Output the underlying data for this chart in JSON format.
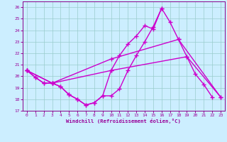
{
  "xlabel": "Windchill (Refroidissement éolien,°C)",
  "xlim": [
    -0.5,
    23.5
  ],
  "ylim": [
    17,
    26.5
  ],
  "yticks": [
    17,
    18,
    19,
    20,
    21,
    22,
    23,
    24,
    25,
    26
  ],
  "xticks": [
    0,
    1,
    2,
    3,
    4,
    5,
    6,
    7,
    8,
    9,
    10,
    11,
    12,
    13,
    14,
    15,
    16,
    17,
    18,
    19,
    20,
    21,
    22,
    23
  ],
  "bg_color": "#cceeff",
  "grid_color": "#99cccc",
  "line_color": "#cc00cc",
  "line_width": 1.0,
  "marker": "+",
  "marker_size": 4,
  "marker_ew": 1.0,
  "line1_x": [
    0,
    1,
    2,
    3,
    4,
    5,
    6,
    7,
    8,
    9,
    10,
    11,
    12,
    13,
    14,
    15,
    16,
    17,
    18,
    19,
    20,
    21,
    22
  ],
  "line1_y": [
    20.5,
    19.9,
    19.4,
    19.4,
    19.1,
    18.4,
    18.0,
    17.5,
    17.7,
    18.3,
    18.3,
    18.9,
    20.5,
    21.8,
    23.0,
    24.3,
    25.9,
    24.7,
    23.2,
    21.7,
    20.2,
    19.3,
    18.2
  ],
  "line2_x": [
    0,
    1,
    2,
    3,
    4,
    5,
    6,
    7,
    8,
    9,
    10,
    11,
    12,
    13,
    14,
    15,
    16
  ],
  "line2_y": [
    20.5,
    19.9,
    19.4,
    19.4,
    19.1,
    18.4,
    18.0,
    17.5,
    17.7,
    18.3,
    20.5,
    21.8,
    22.8,
    23.5,
    24.4,
    24.1,
    25.9
  ],
  "line3_x": [
    0,
    3,
    10,
    18,
    23
  ],
  "line3_y": [
    20.5,
    19.4,
    21.5,
    23.2,
    18.2
  ],
  "line4_x": [
    0,
    3,
    10,
    19,
    23
  ],
  "line4_y": [
    20.5,
    19.4,
    20.5,
    21.7,
    18.2
  ]
}
